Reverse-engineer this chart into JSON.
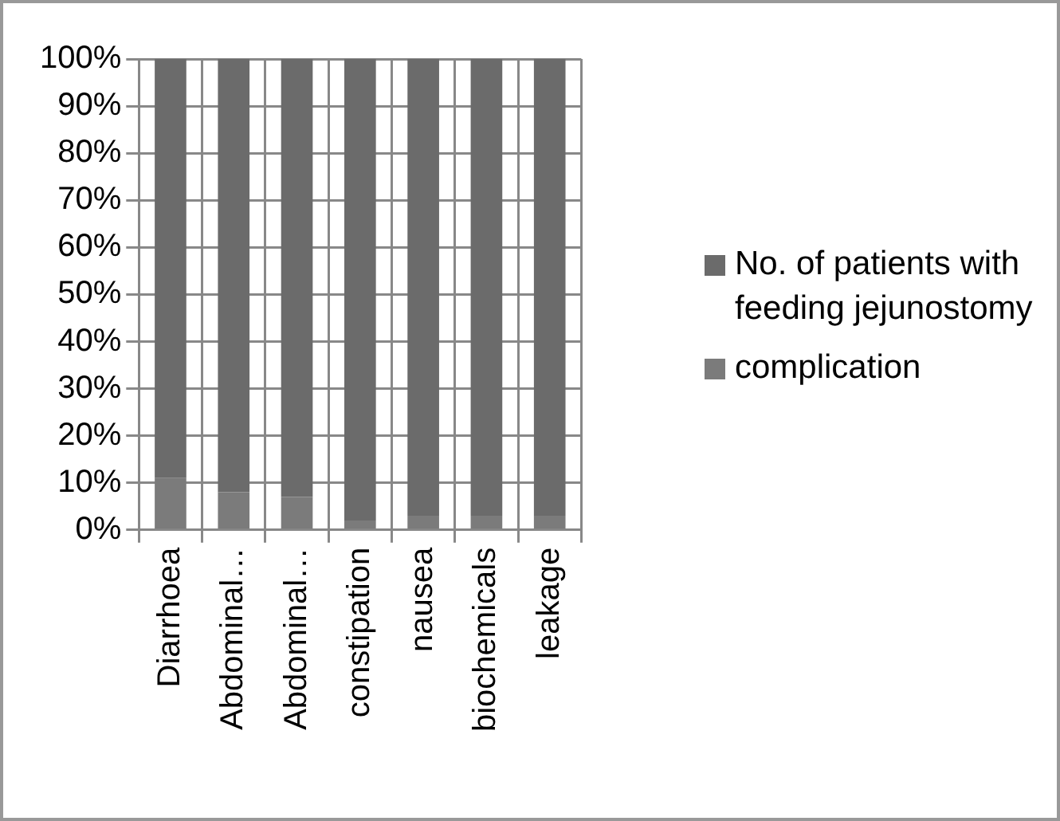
{
  "chart_data": {
    "type": "bar",
    "stacked": true,
    "categories": [
      "Diarrhoea",
      "Abdominal…",
      "Abdominal…",
      "constipation",
      "nausea",
      "biochemicals",
      "leakage"
    ],
    "series": [
      {
        "name": "complication",
        "color": "#7b7b7b",
        "values": [
          11,
          8,
          7,
          2,
          3,
          3,
          3
        ]
      },
      {
        "name": "No. of patients with feeding jejunostomy",
        "color": "#6b6b6b",
        "values": [
          89,
          92,
          93,
          98,
          97,
          97,
          97
        ]
      }
    ],
    "ylim": [
      0,
      100
    ],
    "yticks": [
      {
        "value": 0,
        "label": "0%"
      },
      {
        "value": 10,
        "label": "10%"
      },
      {
        "value": 20,
        "label": "20%"
      },
      {
        "value": 30,
        "label": "30%"
      },
      {
        "value": 40,
        "label": "40%"
      },
      {
        "value": 50,
        "label": "50%"
      },
      {
        "value": 60,
        "label": "60%"
      },
      {
        "value": 70,
        "label": "70%"
      },
      {
        "value": 80,
        "label": "80%"
      },
      {
        "value": 90,
        "label": "90%"
      },
      {
        "value": 100,
        "label": "100%"
      }
    ],
    "grid": true,
    "legend": "right"
  }
}
